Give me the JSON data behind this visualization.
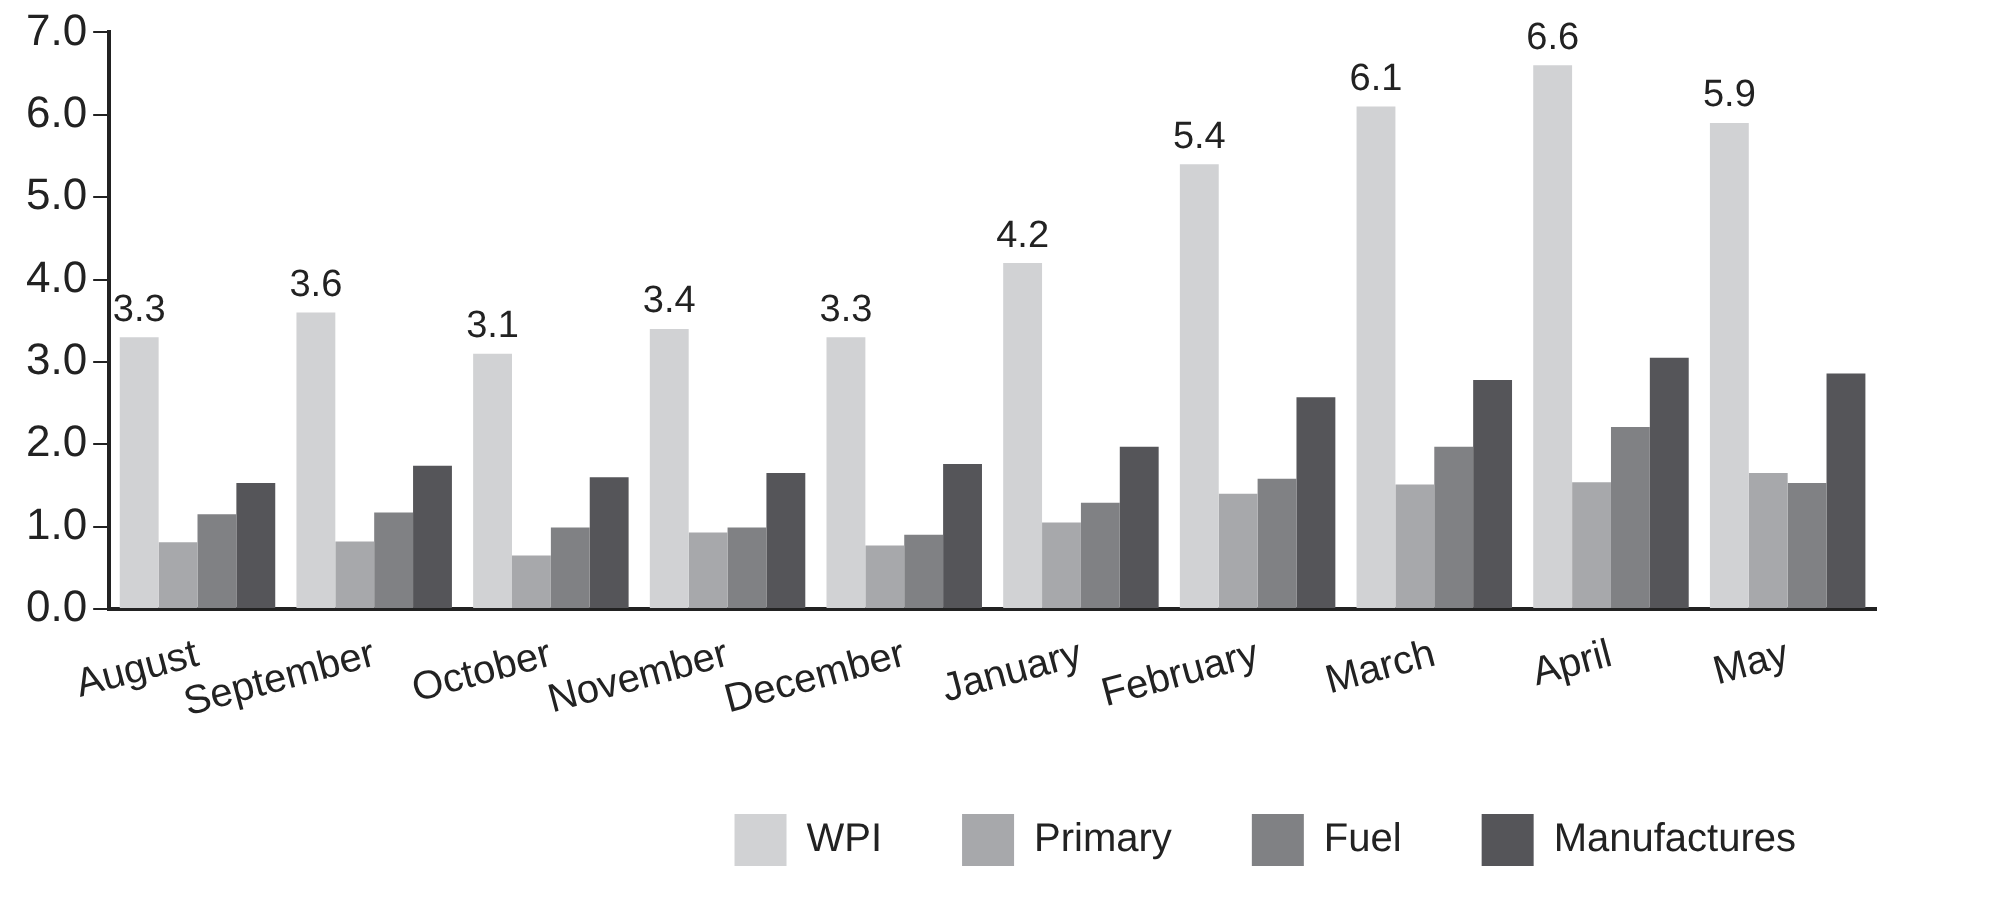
{
  "chart_data": {
    "type": "bar",
    "categories": [
      "August",
      "September",
      "October",
      "November",
      "December",
      "January",
      "February",
      "March",
      "April",
      "May"
    ],
    "series": [
      {
        "name": "WPI",
        "color": "#d1d2d4",
        "values": [
          3.3,
          3.6,
          3.1,
          3.4,
          3.3,
          4.2,
          5.4,
          6.1,
          6.6,
          5.9
        ],
        "value_labels": [
          "3.3",
          "3.6",
          "3.1",
          "3.4",
          "3.3",
          "4.2",
          "5.4",
          "6.1",
          "6.6",
          "5.9"
        ]
      },
      {
        "name": "Primary",
        "color": "#a7a8ab",
        "values": [
          0.81,
          0.82,
          0.65,
          0.93,
          0.77,
          1.05,
          1.4,
          1.51,
          1.54,
          1.65
        ]
      },
      {
        "name": "Fuel",
        "color": "#808184",
        "values": [
          1.15,
          1.17,
          0.99,
          0.99,
          0.9,
          1.29,
          1.58,
          1.97,
          2.21,
          1.53
        ]
      },
      {
        "name": "Manufactures",
        "color": "#555559",
        "values": [
          1.53,
          1.74,
          1.6,
          1.65,
          1.76,
          1.97,
          2.57,
          2.78,
          3.05,
          2.86
        ]
      }
    ],
    "ylim": [
      0,
      7
    ],
    "yticks": [
      {
        "value": 0,
        "label": "0.0"
      },
      {
        "value": 1,
        "label": "1.0"
      },
      {
        "value": 2,
        "label": "2.0"
      },
      {
        "value": 3,
        "label": "3.0"
      },
      {
        "value": 4,
        "label": "4.0"
      },
      {
        "value": 5,
        "label": "5.0"
      },
      {
        "value": 6,
        "label": "6.0"
      },
      {
        "value": 7,
        "label": "7.0"
      }
    ],
    "grid": false,
    "legend": "bottom right"
  }
}
